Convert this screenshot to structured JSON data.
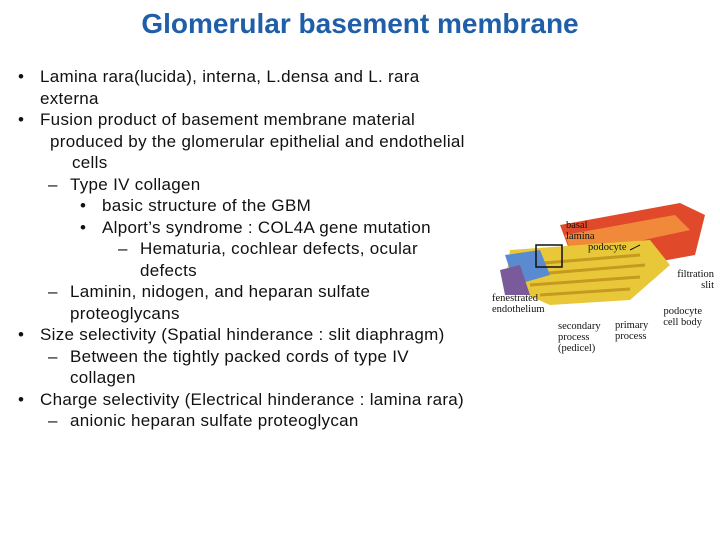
{
  "title": "Glomerular basement membrane",
  "bullets": [
    {
      "marker": "•",
      "text": "Lamina rara(lucida), interna, L.densa and L. rara externa"
    },
    {
      "marker": "•",
      "text": "Fusion product of basement membrane material"
    },
    {
      "text": "produced by the glomerular epithelial and endothelial cells"
    },
    {
      "marker": "–",
      "text": "Type IV collagen"
    },
    {
      "marker": "•",
      "text": "basic structure of the GBM"
    },
    {
      "marker": "•",
      "text": "Alport’s syndrome : COL4A gene mutation"
    },
    {
      "marker": "–",
      "text": "Hematuria, cochlear defects, ocular defects"
    },
    {
      "marker": "–",
      "text": "Laminin, nidogen, and heparan sulfate proteoglycans"
    },
    {
      "marker": "•",
      "text": "Size selectivity (Spatial hinderance : slit diaphragm)"
    },
    {
      "marker": "–",
      "text": "Between the tightly packed cords of type IV collagen"
    },
    {
      "marker": "•",
      "text": "Charge selectivity (Electrical hinderance : lamina rara)"
    },
    {
      "marker": "–",
      "text": "anionic heparan sulfate proteoglycan"
    }
  ],
  "figure": {
    "labels": [
      [
        "basal",
        "lamina"
      ],
      [
        "podocyte"
      ],
      [
        "filtration",
        "slit"
      ],
      [
        "fenestrated",
        "endothelium"
      ],
      [
        "secondary",
        "process",
        "(pedicel)"
      ],
      [
        "primary",
        "process"
      ],
      [
        "podocyte",
        "cell body"
      ]
    ]
  }
}
